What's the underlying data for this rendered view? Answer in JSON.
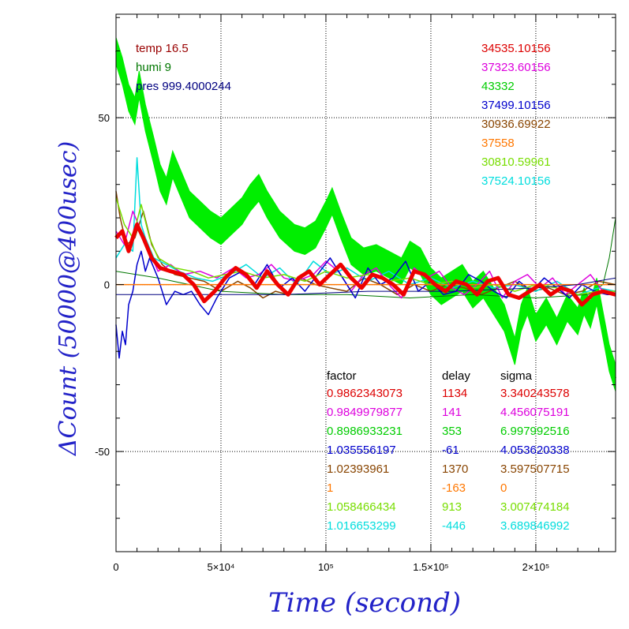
{
  "chart_data": {
    "type": "line",
    "xlabel": "Time (second)",
    "ylabel": "ΔCount (50000@400usec)",
    "xlim": [
      0,
      238000
    ],
    "ylim": [
      -80,
      81
    ],
    "x_ticks": [
      {
        "value": 0,
        "label": "0"
      },
      {
        "value": 50000,
        "label": "5×10⁴"
      },
      {
        "value": 100000,
        "label": "10⁵"
      },
      {
        "value": 150000,
        "label": "1.5×10⁵"
      },
      {
        "value": 200000,
        "label": "2×10⁵"
      }
    ],
    "y_ticks": [
      {
        "value": 50,
        "label": "50"
      },
      {
        "value": 0,
        "label": "0"
      },
      {
        "value": -50,
        "label": "-50"
      }
    ],
    "grid": true,
    "env": [
      {
        "text": "temp 16.5",
        "color": "#990000"
      },
      {
        "text": "humi 9",
        "color": "#007700"
      },
      {
        "text": "pres 999.4000244",
        "color": "#000080"
      }
    ],
    "series_totals": [
      {
        "text": "34535.10156",
        "color": "#dd0000"
      },
      {
        "text": "37323.60156",
        "color": "#dd00dd"
      },
      {
        "text": "43332",
        "color": "#00cc00"
      },
      {
        "text": "37499.10156",
        "color": "#0000cc"
      },
      {
        "text": "30936.69922",
        "color": "#884400"
      },
      {
        "text": "37558",
        "color": "#ff7700"
      },
      {
        "text": "30810.59961",
        "color": "#77dd00"
      },
      {
        "text": "37524.10156",
        "color": "#00dddd"
      }
    ],
    "stats_headers": [
      "factor",
      "delay",
      "sigma"
    ],
    "stats_rows": [
      {
        "factor": "0.9862343073",
        "delay": "1134",
        "sigma": "3.340243578",
        "color": "#dd0000"
      },
      {
        "factor": "0.9849979877",
        "delay": "141",
        "sigma": "4.456075191",
        "color": "#dd00dd"
      },
      {
        "factor": "0.8986933231",
        "delay": "353",
        "sigma": "6.997992516",
        "color": "#00cc00"
      },
      {
        "factor": "1.035556197",
        "delay": "-61",
        "sigma": "4.053620338",
        "color": "#0000cc"
      },
      {
        "factor": "1.02393961",
        "delay": "1370",
        "sigma": "3.597507715",
        "color": "#884400"
      },
      {
        "factor": "1",
        "delay": "-163",
        "sigma": "0",
        "color": "#ff7700"
      },
      {
        "factor": "1.058466434",
        "delay": "913",
        "sigma": "3.007474184",
        "color": "#77dd00"
      },
      {
        "factor": "1.016653299",
        "delay": "-446",
        "sigma": "3.689846992",
        "color": "#00dddd"
      }
    ],
    "series": [
      {
        "color": "#00ee00",
        "width": 2,
        "band": 4,
        "x": [
          0,
          3000,
          6000,
          9000,
          11000,
          14000,
          18000,
          21000,
          24000,
          27000,
          31000,
          35000,
          40000,
          45000,
          50000,
          55000,
          60000,
          64000,
          68000,
          72000,
          78000,
          85000,
          90000,
          95000,
          100000,
          103000,
          107000,
          112000,
          118000,
          124000,
          130000,
          136000,
          140000,
          145000,
          150000,
          155000,
          160000,
          165000,
          170000,
          175000,
          180000,
          185000,
          190000,
          193000,
          196000,
          200000,
          205000,
          210000,
          215000,
          220000,
          223000,
          226000,
          229000,
          232000,
          235000,
          238000
        ],
        "y": [
          70,
          64,
          56,
          52,
          60,
          50,
          40,
          32,
          28,
          36,
          30,
          24,
          21,
          18,
          16,
          19,
          22,
          26,
          29,
          24,
          18,
          14,
          13,
          15,
          21,
          25,
          18,
          10,
          7,
          8,
          6,
          4,
          9,
          7,
          1,
          -2,
          0,
          2,
          -3,
          0,
          -5,
          -10,
          -20,
          -10,
          -5,
          -13,
          -8,
          -14,
          -7,
          -11,
          -5,
          -9,
          -2,
          -12,
          -22,
          -28
        ]
      },
      {
        "color": "#884400",
        "width": 1.5,
        "band": 0,
        "x": [
          0,
          2000,
          5000,
          9000,
          13000,
          17000,
          22000,
          28000,
          35000,
          42000,
          50000,
          58000,
          64000,
          70000,
          76000,
          82000,
          88000,
          95000,
          102000,
          110000,
          118000,
          126000,
          134000,
          142000,
          150000,
          158000,
          166000,
          174000,
          182000,
          190000,
          198000,
          206000,
          214000,
          222000,
          230000,
          238000
        ],
        "y": [
          28,
          20,
          12,
          14,
          22,
          12,
          6,
          3,
          2,
          1,
          -2,
          1,
          -1,
          -4,
          -2,
          -3,
          2,
          0,
          -1,
          -2,
          2,
          0,
          -3,
          0,
          -2,
          0,
          -1,
          -3,
          -1,
          1,
          -2,
          -1,
          -3,
          -2,
          1,
          0
        ]
      },
      {
        "color": "#007700",
        "width": 1,
        "band": 0,
        "x": [
          0,
          20000,
          50000,
          80000,
          110000,
          140000,
          170000,
          200000,
          225000,
          232000,
          235000,
          238000
        ],
        "y": [
          4,
          2,
          -2,
          -3,
          -3,
          -4,
          -3,
          -4,
          -3,
          0,
          8,
          20
        ]
      },
      {
        "color": "#00dddd",
        "width": 1.5,
        "band": 0,
        "x": [
          0,
          4000,
          8000,
          10000,
          12000,
          14000,
          18000,
          24000,
          30000,
          38000,
          46000,
          54000,
          62000,
          70000,
          78000,
          86000,
          94000,
          102000,
          110000,
          120000,
          130000,
          140000,
          150000,
          160000,
          170000,
          180000,
          190000,
          200000,
          210000,
          220000,
          230000,
          238000
        ],
        "y": [
          8,
          12,
          10,
          38,
          18,
          14,
          8,
          6,
          4,
          2,
          1,
          3,
          6,
          2,
          5,
          0,
          7,
          3,
          5,
          1,
          4,
          0,
          2,
          -1,
          1,
          -1,
          0,
          -2,
          1,
          -3,
          -1,
          -2
        ]
      },
      {
        "color": "#dd00dd",
        "width": 1.5,
        "band": 0,
        "x": [
          0,
          4000,
          8000,
          12000,
          16000,
          20000,
          26000,
          32000,
          40000,
          48000,
          56000,
          62000,
          68000,
          74000,
          80000,
          86000,
          94000,
          100000,
          106000,
          112000,
          118000,
          124000,
          130000,
          136000,
          142000,
          148000,
          154000,
          160000,
          166000,
          172000,
          178000,
          184000,
          190000,
          196000,
          202000,
          208000,
          214000,
          220000,
          226000,
          232000,
          238000
        ],
        "y": [
          16,
          12,
          22,
          16,
          10,
          4,
          6,
          3,
          4,
          2,
          5,
          2,
          3,
          6,
          2,
          1,
          3,
          7,
          4,
          -2,
          3,
          5,
          0,
          -4,
          5,
          2,
          4,
          -1,
          -3,
          0,
          4,
          -4,
          1,
          3,
          -1,
          2,
          -3,
          0,
          3,
          -2,
          -3
        ]
      },
      {
        "color": "#0000cc",
        "width": 1.5,
        "band": 0,
        "x": [
          0,
          1500,
          3000,
          4500,
          6000,
          8000,
          10000,
          12000,
          14000,
          16000,
          20000,
          24000,
          28000,
          32000,
          36000,
          40000,
          44000,
          48000,
          54000,
          60000,
          66000,
          72000,
          78000,
          84000,
          90000,
          96000,
          102000,
          108000,
          114000,
          120000,
          126000,
          132000,
          138000,
          144000,
          150000,
          156000,
          162000,
          168000,
          174000,
          180000,
          186000,
          192000,
          198000,
          204000,
          210000,
          216000,
          222000,
          228000,
          234000,
          238000
        ],
        "y": [
          -12,
          -22,
          -14,
          -18,
          -6,
          -2,
          6,
          10,
          4,
          8,
          2,
          -6,
          -2,
          -3,
          -2,
          -6,
          -9,
          -4,
          2,
          4,
          0,
          6,
          -1,
          2,
          -2,
          3,
          8,
          2,
          -4,
          5,
          0,
          2,
          7,
          -2,
          1,
          -3,
          -2,
          3,
          1,
          -2,
          -4,
          1,
          -2,
          2,
          -1,
          -4,
          0,
          -2,
          -3,
          -3
        ]
      },
      {
        "color": "#77dd00",
        "width": 1.5,
        "band": 0,
        "x": [
          0,
          4000,
          8000,
          12000,
          16000,
          20000,
          28000,
          36000,
          44000,
          52000,
          60000,
          70000,
          80000,
          90000,
          100000,
          110000,
          120000,
          130000,
          140000,
          150000,
          160000,
          170000,
          180000,
          190000,
          200000,
          210000,
          220000,
          230000,
          238000
        ],
        "y": [
          26,
          18,
          14,
          24,
          14,
          8,
          5,
          4,
          2,
          3,
          4,
          2,
          3,
          1,
          4,
          2,
          3,
          1,
          2,
          0,
          1,
          -1,
          0,
          -2,
          0,
          -1,
          -3,
          -2,
          -2
        ]
      },
      {
        "color": "#ff7700",
        "width": 1.5,
        "band": 0,
        "x": [
          0,
          238000
        ],
        "y": [
          0,
          0
        ]
      },
      {
        "color": "#000080",
        "width": 1,
        "band": 0,
        "x": [
          0,
          40000,
          80000,
          120000,
          160000,
          200000,
          220000,
          238000
        ],
        "y": [
          -3,
          -3,
          -3,
          -2,
          -2,
          -1,
          0,
          2
        ]
      },
      {
        "color": "#ee0000",
        "width": 5,
        "band": 0,
        "x": [
          0,
          3000,
          6000,
          10000,
          13000,
          17000,
          21000,
          26000,
          32000,
          37000,
          42000,
          47000,
          52000,
          57000,
          62000,
          67000,
          72000,
          77000,
          82000,
          87000,
          92000,
          97000,
          102000,
          107000,
          112000,
          117000,
          122000,
          127000,
          132000,
          137000,
          142000,
          147000,
          152000,
          157000,
          162000,
          167000,
          172000,
          177000,
          182000,
          187000,
          192000,
          197000,
          202000,
          207000,
          212000,
          217000,
          222000,
          227000,
          232000,
          238000
        ],
        "y": [
          14,
          16,
          10,
          18,
          14,
          8,
          5,
          4,
          3,
          0,
          -5,
          -2,
          2,
          5,
          3,
          -1,
          4,
          0,
          -3,
          2,
          4,
          0,
          3,
          6,
          2,
          -1,
          3,
          2,
          0,
          -3,
          4,
          3,
          0,
          -2,
          1,
          0,
          -3,
          1,
          2,
          -3,
          -4,
          -2,
          0,
          -3,
          -1,
          -2,
          -6,
          -3,
          -2,
          -3
        ]
      }
    ]
  }
}
